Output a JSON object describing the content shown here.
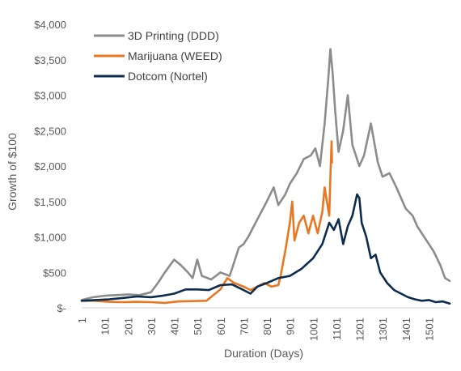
{
  "chart_data": {
    "type": "line",
    "ylabel": "Growth of $100",
    "xlabel": "Duration (Days)",
    "xlim": [
      1,
      1590
    ],
    "ylim": [
      0,
      4000
    ],
    "y_ticks": [
      0,
      500,
      1000,
      1500,
      2000,
      2500,
      3000,
      3500,
      4000
    ],
    "y_tick_labels": [
      "$-",
      "$500",
      "$1,000",
      "$1,500",
      "$2,000",
      "$2,500",
      "$3,000",
      "$3,500",
      "$4,000"
    ],
    "x_ticks": [
      1,
      101,
      201,
      301,
      401,
      501,
      601,
      701,
      801,
      901,
      1001,
      1101,
      1201,
      1301,
      1401,
      1501
    ],
    "x_tick_labels": [
      "1",
      "101",
      "201",
      "301",
      "401",
      "501",
      "601",
      "701",
      "801",
      "901",
      "1001",
      "1101",
      "1201",
      "1301",
      "1401",
      "1501"
    ],
    "grid": false,
    "legend_position": "top-left",
    "series": [
      {
        "name": "3D Printing (DDD)",
        "color": "#8c8c8c",
        "x": [
          1,
          50,
          100,
          150,
          200,
          250,
          300,
          330,
          360,
          400,
          430,
          460,
          480,
          500,
          520,
          560,
          600,
          640,
          680,
          700,
          720,
          760,
          800,
          830,
          850,
          880,
          900,
          930,
          960,
          990,
          1010,
          1030,
          1050,
          1065,
          1075,
          1085,
          1095,
          1110,
          1130,
          1150,
          1170,
          1200,
          1220,
          1250,
          1280,
          1300,
          1330,
          1360,
          1400,
          1430,
          1450,
          1480,
          1520,
          1550,
          1570,
          1590
        ],
        "y": [
          110,
          150,
          170,
          180,
          190,
          180,
          220,
          350,
          500,
          680,
          600,
          500,
          420,
          680,
          450,
          400,
          500,
          450,
          850,
          900,
          1000,
          1250,
          1500,
          1700,
          1450,
          1600,
          1750,
          1900,
          2100,
          2150,
          2250,
          2000,
          2600,
          3200,
          3650,
          3300,
          2800,
          2200,
          2500,
          3000,
          2300,
          2000,
          2150,
          2600,
          2050,
          1850,
          1900,
          1700,
          1400,
          1300,
          1150,
          1000,
          800,
          600,
          420,
          380
        ]
      },
      {
        "name": "Marijuana (WEED)",
        "color": "#e87722",
        "x": [
          1,
          60,
          120,
          180,
          240,
          300,
          360,
          420,
          480,
          540,
          600,
          630,
          660,
          700,
          730,
          760,
          790,
          820,
          850,
          860,
          880,
          900,
          910,
          920,
          940,
          960,
          980,
          1000,
          1020,
          1030,
          1040,
          1050,
          1060,
          1070,
          1075,
          1080,
          1082
        ],
        "y": [
          100,
          100,
          85,
          80,
          85,
          80,
          70,
          90,
          95,
          100,
          260,
          420,
          350,
          300,
          250,
          300,
          350,
          300,
          320,
          450,
          800,
          1200,
          1500,
          950,
          1200,
          1300,
          1050,
          1300,
          1050,
          1200,
          1350,
          1700,
          1500,
          1300,
          1850,
          2350,
          2050
        ]
      },
      {
        "name": "Dotcom (Nortel)",
        "color": "#0d2c4d",
        "x": [
          1,
          60,
          120,
          180,
          240,
          300,
          350,
          400,
          450,
          500,
          550,
          600,
          650,
          700,
          730,
          760,
          800,
          850,
          900,
          950,
          1000,
          1040,
          1070,
          1090,
          1110,
          1130,
          1150,
          1170,
          1190,
          1200,
          1210,
          1230,
          1250,
          1270,
          1290,
          1310,
          1320,
          1350,
          1380,
          1410,
          1440,
          1470,
          1500,
          1530,
          1560,
          1590
        ],
        "y": [
          100,
          110,
          120,
          140,
          160,
          150,
          170,
          200,
          260,
          260,
          250,
          320,
          330,
          250,
          200,
          300,
          350,
          420,
          450,
          550,
          700,
          900,
          1200,
          1100,
          1250,
          900,
          1150,
          1300,
          1600,
          1550,
          1200,
          1000,
          700,
          750,
          500,
          400,
          350,
          250,
          200,
          150,
          120,
          100,
          110,
          80,
          90,
          60
        ]
      }
    ]
  }
}
